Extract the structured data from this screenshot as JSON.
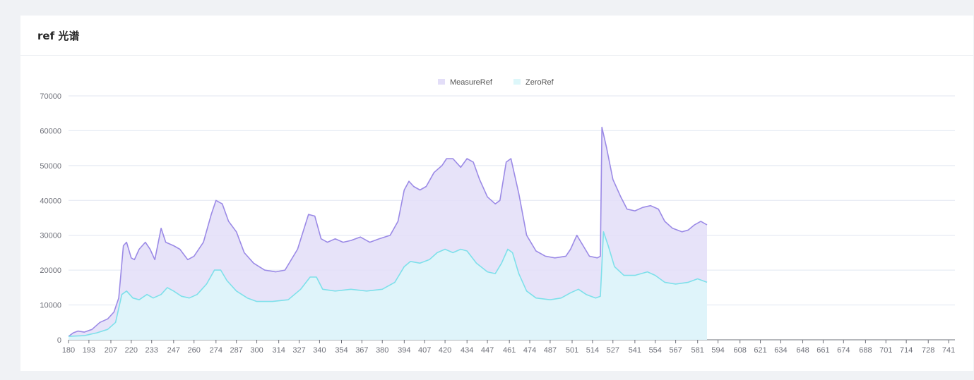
{
  "card": {
    "title": "ref 光谱"
  },
  "chart_data": {
    "type": "area",
    "title": "",
    "xlabel": "",
    "ylabel": "",
    "ylim": [
      0,
      70000
    ],
    "y_ticks": [
      "0",
      "10000",
      "20000",
      "30000",
      "40000",
      "50000",
      "60000",
      "70000"
    ],
    "x_ticks": [
      "180",
      "193",
      "207",
      "220",
      "233",
      "247",
      "260",
      "274",
      "287",
      "300",
      "314",
      "327",
      "340",
      "354",
      "367",
      "380",
      "394",
      "407",
      "420",
      "434",
      "447",
      "461",
      "474",
      "487",
      "501",
      "514",
      "527",
      "541",
      "554",
      "567",
      "581",
      "594",
      "608",
      "621",
      "634",
      "648",
      "661",
      "674",
      "688",
      "701",
      "714",
      "728",
      "741"
    ],
    "grid": true,
    "legend_position": "top-center",
    "series": [
      {
        "name": "MeasureRef",
        "color": "#9b8ae6",
        "fill": "#e3def8",
        "points": [
          [
            180,
            1000
          ],
          [
            183,
            2000
          ],
          [
            186,
            2500
          ],
          [
            190,
            2200
          ],
          [
            195,
            3000
          ],
          [
            200,
            5000
          ],
          [
            205,
            6000
          ],
          [
            209,
            8000
          ],
          [
            212,
            12000
          ],
          [
            215,
            27000
          ],
          [
            217,
            28000
          ],
          [
            220,
            23500
          ],
          [
            222,
            23000
          ],
          [
            225,
            26000
          ],
          [
            229,
            28000
          ],
          [
            232,
            26000
          ],
          [
            235,
            23000
          ],
          [
            239,
            32000
          ],
          [
            242,
            28000
          ],
          [
            247,
            27000
          ],
          [
            251,
            26000
          ],
          [
            256,
            23000
          ],
          [
            260,
            24000
          ],
          [
            266,
            28000
          ],
          [
            271,
            36000
          ],
          [
            274,
            40000
          ],
          [
            278,
            39000
          ],
          [
            282,
            34000
          ],
          [
            287,
            31000
          ],
          [
            292,
            25000
          ],
          [
            298,
            22000
          ],
          [
            305,
            20000
          ],
          [
            312,
            19500
          ],
          [
            318,
            20000
          ],
          [
            326,
            26000
          ],
          [
            333,
            36000
          ],
          [
            337,
            35500
          ],
          [
            341,
            29000
          ],
          [
            345,
            28000
          ],
          [
            350,
            29000
          ],
          [
            355,
            28000
          ],
          [
            360,
            28500
          ],
          [
            366,
            29500
          ],
          [
            372,
            28000
          ],
          [
            378,
            29000
          ],
          [
            385,
            30000
          ],
          [
            390,
            34000
          ],
          [
            394,
            43000
          ],
          [
            397,
            45500
          ],
          [
            400,
            44000
          ],
          [
            404,
            43000
          ],
          [
            408,
            44000
          ],
          [
            413,
            48000
          ],
          [
            418,
            50000
          ],
          [
            421,
            52000
          ],
          [
            425,
            52000
          ],
          [
            430,
            49500
          ],
          [
            434,
            52000
          ],
          [
            438,
            51000
          ],
          [
            442,
            46000
          ],
          [
            447,
            41000
          ],
          [
            452,
            39000
          ],
          [
            455,
            40000
          ],
          [
            459,
            51000
          ],
          [
            462,
            52000
          ],
          [
            467,
            42000
          ],
          [
            472,
            30000
          ],
          [
            478,
            25500
          ],
          [
            484,
            24000
          ],
          [
            490,
            23500
          ],
          [
            497,
            24000
          ],
          [
            500,
            26000
          ],
          [
            504,
            30000
          ],
          [
            508,
            27000
          ],
          [
            512,
            24000
          ],
          [
            517,
            23500
          ],
          [
            519,
            24000
          ],
          [
            520,
            61000
          ],
          [
            523,
            55000
          ],
          [
            527,
            46000
          ],
          [
            532,
            41000
          ],
          [
            536,
            37500
          ],
          [
            541,
            37000
          ],
          [
            546,
            38000
          ],
          [
            551,
            38500
          ],
          [
            556,
            37500
          ],
          [
            560,
            34000
          ],
          [
            565,
            32000
          ],
          [
            571,
            31000
          ],
          [
            575,
            31500
          ],
          [
            579,
            33000
          ],
          [
            583,
            34000
          ],
          [
            587,
            33000
          ]
        ]
      },
      {
        "name": "ZeroRef",
        "color": "#7ee0ea",
        "fill": "#ddf7fa",
        "points": [
          [
            180,
            1000
          ],
          [
            190,
            1200
          ],
          [
            198,
            2000
          ],
          [
            205,
            3000
          ],
          [
            210,
            5000
          ],
          [
            214,
            13000
          ],
          [
            217,
            14000
          ],
          [
            221,
            12000
          ],
          [
            225,
            11500
          ],
          [
            230,
            13000
          ],
          [
            234,
            12000
          ],
          [
            239,
            13000
          ],
          [
            243,
            15000
          ],
          [
            247,
            14000
          ],
          [
            252,
            12500
          ],
          [
            257,
            12000
          ],
          [
            262,
            13000
          ],
          [
            268,
            16000
          ],
          [
            273,
            20000
          ],
          [
            277,
            20000
          ],
          [
            281,
            17000
          ],
          [
            287,
            14000
          ],
          [
            294,
            12000
          ],
          [
            300,
            11000
          ],
          [
            310,
            11000
          ],
          [
            320,
            11500
          ],
          [
            328,
            14500
          ],
          [
            334,
            18000
          ],
          [
            338,
            18000
          ],
          [
            342,
            14500
          ],
          [
            350,
            14000
          ],
          [
            360,
            14500
          ],
          [
            370,
            14000
          ],
          [
            380,
            14500
          ],
          [
            388,
            16500
          ],
          [
            394,
            21000
          ],
          [
            398,
            22500
          ],
          [
            404,
            22000
          ],
          [
            410,
            23000
          ],
          [
            415,
            25000
          ],
          [
            420,
            26000
          ],
          [
            425,
            25000
          ],
          [
            430,
            26000
          ],
          [
            434,
            25500
          ],
          [
            440,
            22000
          ],
          [
            447,
            19500
          ],
          [
            452,
            19000
          ],
          [
            456,
            22000
          ],
          [
            460,
            26000
          ],
          [
            463,
            25000
          ],
          [
            467,
            19000
          ],
          [
            472,
            14000
          ],
          [
            478,
            12000
          ],
          [
            487,
            11500
          ],
          [
            494,
            12000
          ],
          [
            500,
            13500
          ],
          [
            505,
            14500
          ],
          [
            510,
            13000
          ],
          [
            516,
            12000
          ],
          [
            519,
            12500
          ],
          [
            521,
            31000
          ],
          [
            524,
            27000
          ],
          [
            528,
            21000
          ],
          [
            534,
            18500
          ],
          [
            541,
            18500
          ],
          [
            549,
            19500
          ],
          [
            554,
            18500
          ],
          [
            560,
            16500
          ],
          [
            567,
            16000
          ],
          [
            575,
            16500
          ],
          [
            581,
            17500
          ],
          [
            587,
            16500
          ]
        ]
      }
    ]
  }
}
